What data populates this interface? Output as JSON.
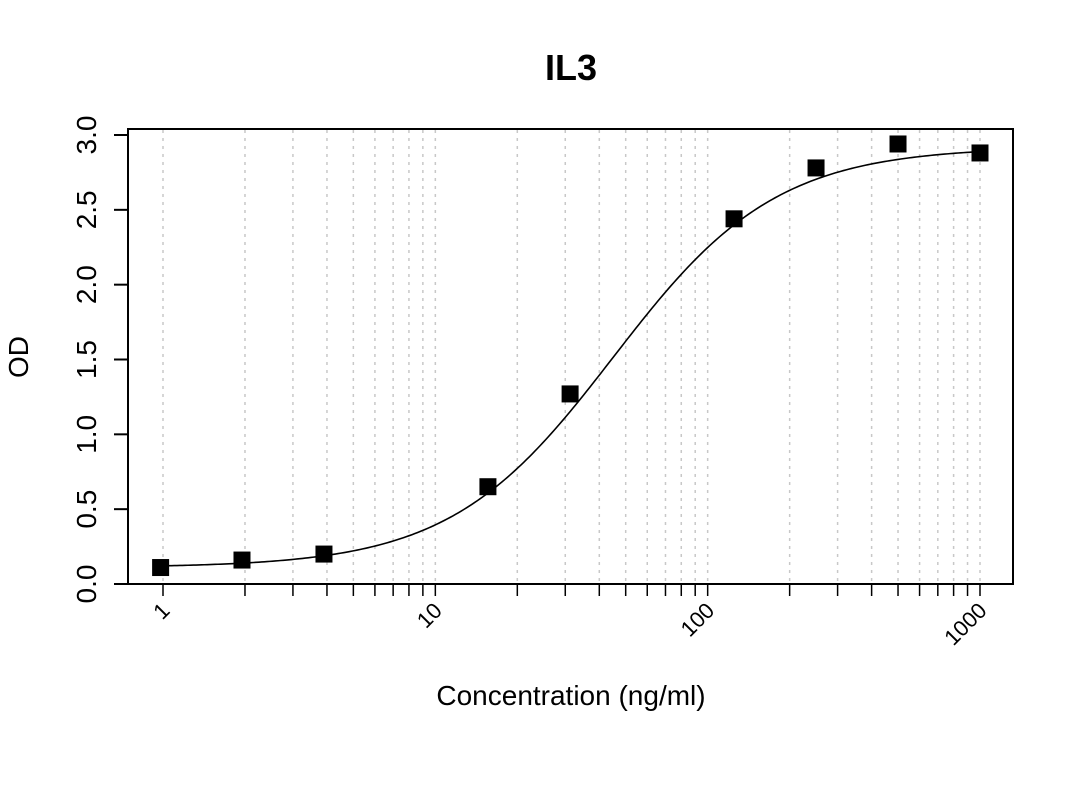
{
  "chart_data": {
    "type": "scatter",
    "title": "IL3",
    "xlabel": "Concentration (ng/ml)",
    "ylabel": "OD",
    "x_scale": "log",
    "xlim": [
      1,
      1000
    ],
    "ylim": [
      0,
      3
    ],
    "grid": "vertical dotted at log minor ticks",
    "x_tick_labels": [
      "1",
      "10",
      "100",
      "1000"
    ],
    "y_tick_labels": [
      "0.0",
      "0.5",
      "1.0",
      "1.5",
      "2.0",
      "2.5",
      "3.0"
    ],
    "point_marker": "filled square",
    "point_color": "#000000",
    "points": [
      {
        "x": 0.98,
        "y": 0.11
      },
      {
        "x": 1.95,
        "y": 0.16
      },
      {
        "x": 3.9,
        "y": 0.2
      },
      {
        "x": 15.6,
        "y": 0.65
      },
      {
        "x": 31.25,
        "y": 1.27
      },
      {
        "x": 125,
        "y": 2.44
      },
      {
        "x": 250,
        "y": 2.78
      },
      {
        "x": 500,
        "y": 2.94
      },
      {
        "x": 1000,
        "y": 2.88
      }
    ],
    "fit_curve": {
      "type": "4PL",
      "a": 0.11,
      "d": 2.92,
      "c": 45,
      "b": 1.45
    }
  }
}
